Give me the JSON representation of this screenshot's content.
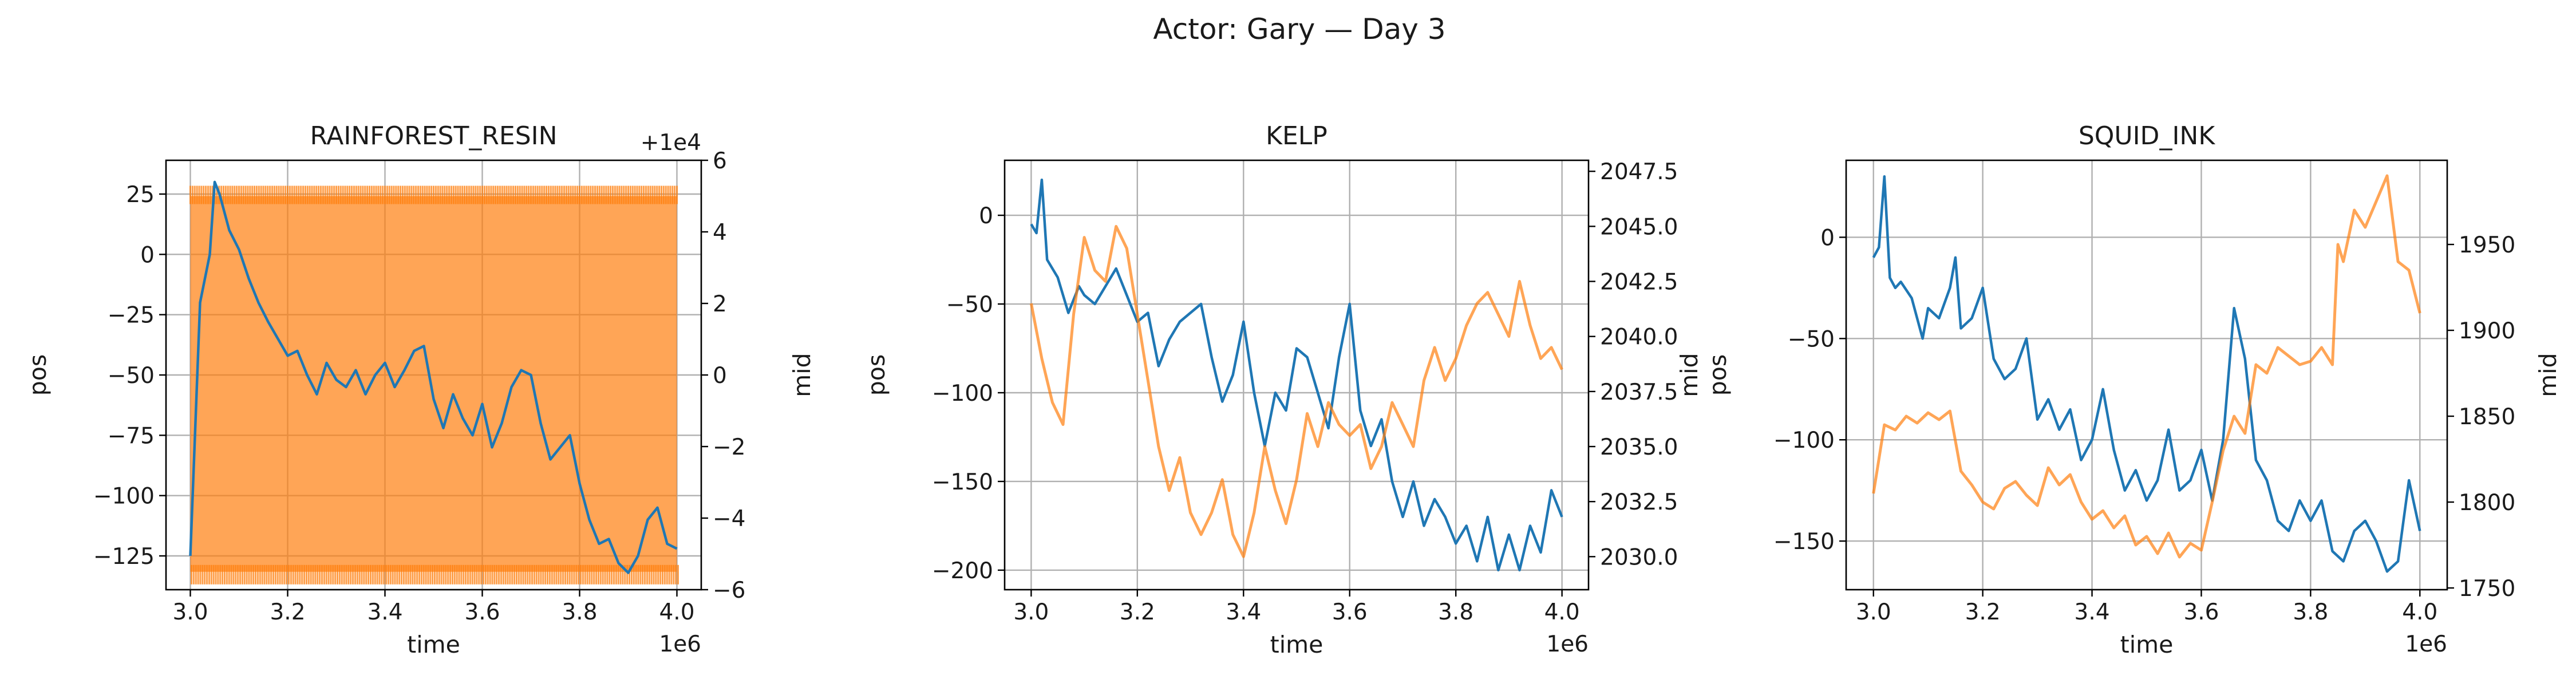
{
  "figure": {
    "title": "Actor: Gary — Day 3"
  },
  "colors": {
    "pos": "#1f77b4",
    "mid": "#ff7f0e",
    "mid_alpha": 0.7
  },
  "chart_data": [
    {
      "type": "line",
      "title": "RAINFOREST_RESIN",
      "xlabel": "time",
      "ylabel_left": "pos",
      "ylabel_right": "mid",
      "x_offset_label": "1e6",
      "right_offset_label": "+1e4",
      "xlim": [
        2.95,
        4.05
      ],
      "xticks": [
        3.0,
        3.2,
        3.4,
        3.6,
        3.8,
        4.0
      ],
      "xtick_labels": [
        "3.0",
        "3.2",
        "3.4",
        "3.6",
        "3.8",
        "4.0"
      ],
      "ylim_left": [
        -139,
        39
      ],
      "yticks_left": [
        25,
        0,
        -25,
        -50,
        -75,
        -100,
        -125
      ],
      "ylim_right": [
        -6,
        6
      ],
      "yticks_right": [
        6,
        4,
        2,
        0,
        -2,
        -4,
        -6
      ],
      "grid": true,
      "series": [
        {
          "axis": "left",
          "x": [
            3.0,
            3.02,
            3.04,
            3.05,
            3.06,
            3.08,
            3.1,
            3.12,
            3.14,
            3.16,
            3.18,
            3.2,
            3.22,
            3.24,
            3.26,
            3.28,
            3.3,
            3.32,
            3.34,
            3.36,
            3.38,
            3.4,
            3.42,
            3.44,
            3.46,
            3.48,
            3.5,
            3.52,
            3.54,
            3.56,
            3.58,
            3.6,
            3.62,
            3.64,
            3.66,
            3.68,
            3.7,
            3.72,
            3.74,
            3.76,
            3.78,
            3.8,
            3.82,
            3.84,
            3.86,
            3.88,
            3.9,
            3.92,
            3.94,
            3.96,
            3.98,
            4.0
          ],
          "y": [
            -125,
            -20,
            0,
            30,
            25,
            10,
            2,
            -10,
            -20,
            -28,
            -35,
            -42,
            -40,
            -50,
            -58,
            -45,
            -52,
            -55,
            -48,
            -58,
            -50,
            -45,
            -55,
            -48,
            -40,
            -38,
            -60,
            -72,
            -58,
            -68,
            -75,
            -62,
            -80,
            -70,
            -55,
            -48,
            -50,
            -70,
            -85,
            -80,
            -75,
            -95,
            -110,
            -120,
            -118,
            -128,
            -132,
            -125,
            -110,
            -105,
            -120,
            -122
          ]
        },
        {
          "axis": "right",
          "band": true,
          "x": [
            3.0,
            4.0
          ],
          "y_low": [
            -5.5,
            -5.5
          ],
          "y_high": [
            5.0,
            5.0
          ]
        }
      ]
    },
    {
      "type": "line",
      "title": "KELP",
      "xlabel": "time",
      "ylabel_left": "pos",
      "ylabel_right": "mid",
      "x_offset_label": "1e6",
      "xlim": [
        2.95,
        4.05
      ],
      "xticks": [
        3.0,
        3.2,
        3.4,
        3.6,
        3.8,
        4.0
      ],
      "xtick_labels": [
        "3.0",
        "3.2",
        "3.4",
        "3.6",
        "3.8",
        "4.0"
      ],
      "ylim_left": [
        -211,
        31
      ],
      "yticks_left": [
        0,
        -50,
        -100,
        -150,
        -200
      ],
      "ylim_right": [
        2028.5,
        2048.0
      ],
      "yticks_right": [
        2047.5,
        2045.0,
        2042.5,
        2040.0,
        2037.5,
        2035.0,
        2032.5,
        2030.0
      ],
      "ytick_labels_right": [
        "2047.5",
        "2045.0",
        "2042.5",
        "2040.0",
        "2037.5",
        "2035.0",
        "2032.5",
        "2030.0"
      ],
      "grid": true,
      "series": [
        {
          "axis": "left",
          "x": [
            3.0,
            3.01,
            3.02,
            3.03,
            3.05,
            3.07,
            3.09,
            3.1,
            3.12,
            3.14,
            3.16,
            3.18,
            3.2,
            3.22,
            3.24,
            3.26,
            3.28,
            3.3,
            3.32,
            3.34,
            3.36,
            3.38,
            3.4,
            3.42,
            3.44,
            3.46,
            3.48,
            3.5,
            3.52,
            3.54,
            3.56,
            3.58,
            3.6,
            3.62,
            3.64,
            3.66,
            3.68,
            3.7,
            3.72,
            3.74,
            3.76,
            3.78,
            3.8,
            3.82,
            3.84,
            3.86,
            3.88,
            3.9,
            3.92,
            3.94,
            3.96,
            3.98,
            4.0
          ],
          "y": [
            -5,
            -10,
            20,
            -25,
            -35,
            -55,
            -40,
            -45,
            -50,
            -40,
            -30,
            -45,
            -60,
            -55,
            -85,
            -70,
            -60,
            -55,
            -50,
            -80,
            -105,
            -90,
            -60,
            -100,
            -130,
            -100,
            -110,
            -75,
            -80,
            -100,
            -120,
            -80,
            -50,
            -110,
            -130,
            -115,
            -150,
            -170,
            -150,
            -175,
            -160,
            -170,
            -185,
            -175,
            -195,
            -170,
            -200,
            -180,
            -200,
            -175,
            -190,
            -155,
            -170
          ]
        },
        {
          "axis": "right",
          "x": [
            3.0,
            3.02,
            3.04,
            3.06,
            3.08,
            3.1,
            3.12,
            3.14,
            3.16,
            3.18,
            3.2,
            3.22,
            3.24,
            3.26,
            3.28,
            3.3,
            3.32,
            3.34,
            3.36,
            3.38,
            3.4,
            3.42,
            3.44,
            3.46,
            3.48,
            3.5,
            3.52,
            3.54,
            3.56,
            3.58,
            3.6,
            3.62,
            3.64,
            3.66,
            3.68,
            3.7,
            3.72,
            3.74,
            3.76,
            3.78,
            3.8,
            3.82,
            3.84,
            3.86,
            3.88,
            3.9,
            3.92,
            3.94,
            3.96,
            3.98,
            4.0
          ],
          "y": [
            2041.5,
            2039.0,
            2037.0,
            2036.0,
            2041.0,
            2044.5,
            2043.0,
            2042.5,
            2045.0,
            2044.0,
            2041.0,
            2038.0,
            2035.0,
            2033.0,
            2034.5,
            2032.0,
            2031.0,
            2032.0,
            2033.5,
            2031.0,
            2030.0,
            2032.0,
            2035.0,
            2033.0,
            2031.5,
            2033.5,
            2036.5,
            2035.0,
            2037.0,
            2036.0,
            2035.5,
            2036.0,
            2034.0,
            2035.0,
            2037.0,
            2036.0,
            2035.0,
            2038.0,
            2039.5,
            2038.0,
            2039.0,
            2040.5,
            2041.5,
            2042.0,
            2041.0,
            2040.0,
            2042.5,
            2040.5,
            2039.0,
            2039.5,
            2038.5
          ]
        }
      ]
    },
    {
      "type": "line",
      "title": "SQUID_INK",
      "xlabel": "time",
      "ylabel_left": "pos",
      "ylabel_right": "mid",
      "x_offset_label": "1e6",
      "xlim": [
        2.95,
        4.05
      ],
      "xticks": [
        3.0,
        3.2,
        3.4,
        3.6,
        3.8,
        4.0
      ],
      "xtick_labels": [
        "3.0",
        "3.2",
        "3.4",
        "3.6",
        "3.8",
        "4.0"
      ],
      "ylim_left": [
        -174,
        38
      ],
      "yticks_left": [
        0,
        -50,
        -100,
        -150
      ],
      "ylim_right": [
        1749,
        1999
      ],
      "yticks_right": [
        1950,
        1900,
        1850,
        1800,
        1750
      ],
      "grid": true,
      "series": [
        {
          "axis": "left",
          "x": [
            3.0,
            3.01,
            3.02,
            3.03,
            3.04,
            3.05,
            3.07,
            3.09,
            3.1,
            3.12,
            3.14,
            3.15,
            3.16,
            3.18,
            3.2,
            3.22,
            3.24,
            3.26,
            3.28,
            3.3,
            3.32,
            3.34,
            3.36,
            3.38,
            3.4,
            3.42,
            3.44,
            3.46,
            3.48,
            3.5,
            3.52,
            3.54,
            3.56,
            3.58,
            3.6,
            3.62,
            3.64,
            3.66,
            3.68,
            3.7,
            3.72,
            3.74,
            3.76,
            3.78,
            3.8,
            3.82,
            3.84,
            3.86,
            3.88,
            3.9,
            3.92,
            3.94,
            3.96,
            3.97,
            3.98,
            4.0
          ],
          "y": [
            -10,
            -5,
            30,
            -20,
            -25,
            -22,
            -30,
            -50,
            -35,
            -40,
            -25,
            -10,
            -45,
            -40,
            -25,
            -60,
            -70,
            -65,
            -50,
            -90,
            -80,
            -95,
            -85,
            -110,
            -100,
            -75,
            -105,
            -125,
            -115,
            -130,
            -120,
            -95,
            -125,
            -120,
            -105,
            -130,
            -100,
            -35,
            -60,
            -110,
            -120,
            -140,
            -145,
            -130,
            -140,
            -130,
            -155,
            -160,
            -145,
            -140,
            -150,
            -165,
            -160,
            -140,
            -120,
            -145
          ]
        },
        {
          "axis": "right",
          "x": [
            3.0,
            3.02,
            3.04,
            3.06,
            3.08,
            3.1,
            3.12,
            3.14,
            3.16,
            3.18,
            3.2,
            3.22,
            3.24,
            3.26,
            3.28,
            3.3,
            3.32,
            3.34,
            3.36,
            3.38,
            3.4,
            3.42,
            3.44,
            3.46,
            3.48,
            3.5,
            3.52,
            3.54,
            3.56,
            3.58,
            3.6,
            3.62,
            3.64,
            3.66,
            3.68,
            3.7,
            3.72,
            3.74,
            3.76,
            3.78,
            3.8,
            3.82,
            3.84,
            3.85,
            3.86,
            3.88,
            3.9,
            3.92,
            3.94,
            3.96,
            3.98,
            4.0
          ],
          "y": [
            1805,
            1845,
            1842,
            1850,
            1846,
            1852,
            1848,
            1853,
            1818,
            1810,
            1800,
            1796,
            1808,
            1812,
            1804,
            1798,
            1820,
            1810,
            1816,
            1800,
            1790,
            1795,
            1785,
            1792,
            1775,
            1780,
            1770,
            1782,
            1768,
            1776,
            1772,
            1800,
            1830,
            1850,
            1840,
            1880,
            1875,
            1890,
            1885,
            1880,
            1882,
            1890,
            1880,
            1950,
            1940,
            1970,
            1960,
            1975,
            1990,
            1940,
            1935,
            1910
          ]
        }
      ]
    }
  ]
}
